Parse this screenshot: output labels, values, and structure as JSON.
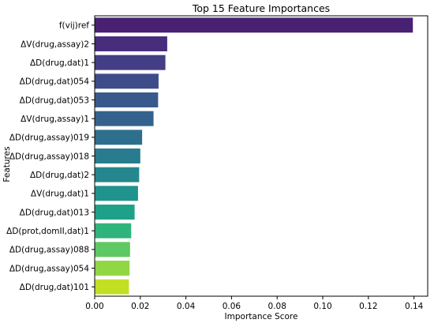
{
  "chart_data": {
    "type": "bar",
    "orientation": "horizontal",
    "title": "Top 15 Feature Importances",
    "xlabel": "Importance Score",
    "ylabel": "Features",
    "xlim": [
      0,
      0.146
    ],
    "xticks": [
      "0.00",
      "0.02",
      "0.04",
      "0.06",
      "0.08",
      "0.10",
      "0.12",
      "0.14"
    ],
    "categories": [
      "f(vij)ref",
      "ΔV(drug,assay)2",
      "ΔD(drug,dat)1",
      "ΔD(drug,dat)054",
      "ΔD(drug,dat)053",
      "ΔV(drug,assay)1",
      "ΔD(drug,assay)019",
      "ΔD(drug,assay)018",
      "ΔD(drug,dat)2",
      "ΔV(drug,dat)1",
      "ΔD(drug,dat)013",
      "ΔD(prot,domII,dat)1",
      "ΔD(drug,assay)088",
      "ΔD(drug,assay)054",
      "ΔD(drug,dat)101"
    ],
    "values": [
      0.1395,
      0.0318,
      0.031,
      0.028,
      0.0278,
      0.0258,
      0.0208,
      0.02,
      0.0195,
      0.019,
      0.0175,
      0.016,
      0.0155,
      0.0153,
      0.015
    ],
    "colors": [
      "#482173",
      "#472d7b",
      "#433e85",
      "#3e4c8a",
      "#38598c",
      "#33638d",
      "#2e6f8e",
      "#287c8e",
      "#24878e",
      "#20938c",
      "#1fa088",
      "#2fb47c",
      "#5ec962",
      "#90d743",
      "#c2df23"
    ],
    "grid": false,
    "legend": "none"
  }
}
